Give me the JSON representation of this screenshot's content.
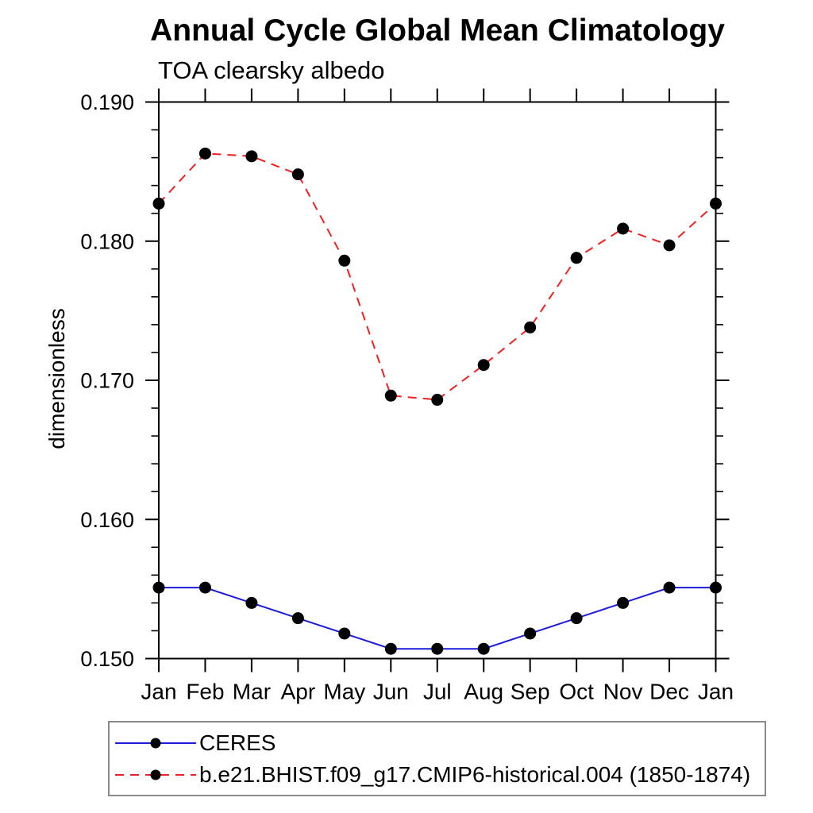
{
  "chart_data": {
    "type": "line",
    "title": "Annual Cycle Global Mean Climatology",
    "subtitle": "TOA clearsky albedo",
    "ylabel": "dimensionless",
    "xlabel": "",
    "x_categories": [
      "Jan",
      "Feb",
      "Mar",
      "Apr",
      "May",
      "Jun",
      "Jul",
      "Aug",
      "Sep",
      "Oct",
      "Nov",
      "Dec",
      "Jan"
    ],
    "ylim": [
      0.15,
      0.19
    ],
    "y_major_tick_labels": [
      "0.190",
      "0.180",
      "0.170",
      "0.160",
      "0.150"
    ],
    "y_major_step": 0.01,
    "y_minor_step": 0.002,
    "grid": false,
    "legend_position": "bottom-left",
    "series": [
      {
        "name": "CERES",
        "color": "#1c1cdc",
        "line_style": "solid",
        "marker": "black-filled-circle",
        "values": [
          0.1551,
          0.1551,
          0.154,
          0.1529,
          0.1518,
          0.1507,
          0.1507,
          0.1507,
          0.1518,
          0.1529,
          0.154,
          0.1551,
          0.1551
        ]
      },
      {
        "name": "b.e21.BHIST.f09_g17.CMIP6-historical.004 (1850-1874)",
        "color": "#f22020",
        "line_style": "dashed",
        "marker": "black-filled-circle",
        "values": [
          0.1827,
          0.1863,
          0.1861,
          0.1848,
          0.1786,
          0.1689,
          0.1686,
          0.1711,
          0.1738,
          0.1788,
          0.1809,
          0.1797,
          0.1827
        ]
      }
    ],
    "marker_color": "#000000",
    "axis_color": "#000000"
  }
}
